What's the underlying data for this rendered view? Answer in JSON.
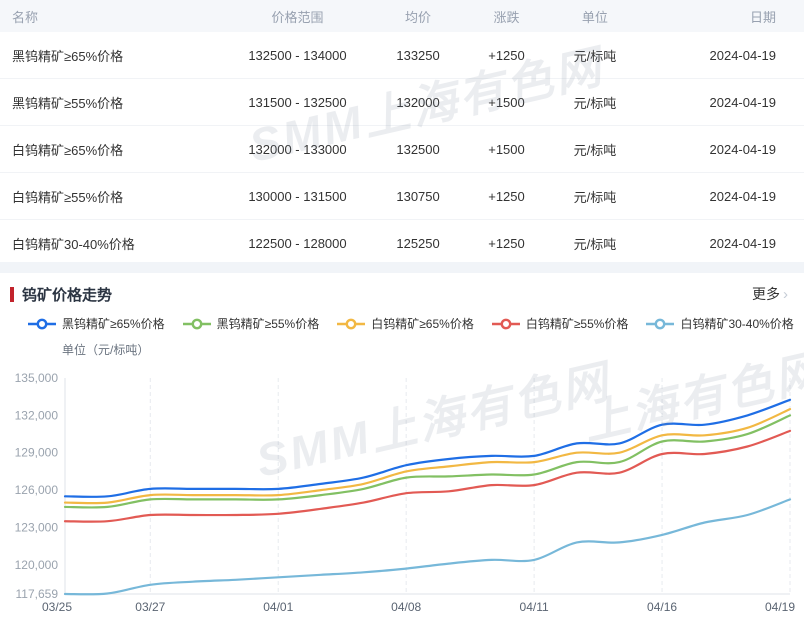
{
  "table": {
    "columns": [
      "名称",
      "价格范围",
      "均价",
      "涨跌",
      "单位",
      "日期"
    ],
    "rows": [
      {
        "name": "黑钨精矿≥65%价格",
        "range": "132500 - 134000",
        "avg": "133250",
        "change": "+1250",
        "unit": "元/标吨",
        "date": "2024-04-19"
      },
      {
        "name": "黑钨精矿≥55%价格",
        "range": "131500 - 132500",
        "avg": "132000",
        "change": "+1500",
        "unit": "元/标吨",
        "date": "2024-04-19"
      },
      {
        "name": "白钨精矿≥65%价格",
        "range": "132000 - 133000",
        "avg": "132500",
        "change": "+1500",
        "unit": "元/标吨",
        "date": "2024-04-19"
      },
      {
        "name": "白钨精矿≥55%价格",
        "range": "130000 - 131500",
        "avg": "130750",
        "change": "+1250",
        "unit": "元/标吨",
        "date": "2024-04-19"
      },
      {
        "name": "白钨精矿30-40%价格",
        "range": "122500 - 128000",
        "avg": "125250",
        "change": "+1250",
        "unit": "元/标吨",
        "date": "2024-04-19"
      }
    ]
  },
  "section": {
    "title": "钨矿价格走势",
    "more_label": "更多",
    "more_chevron": "›"
  },
  "watermark": "SMM上海有色网",
  "colors": {
    "accent_red": "#c2232c",
    "value_red": "#c8434e",
    "header_bg": "#f5f7fa"
  },
  "chart_data": {
    "type": "line",
    "title": "钨矿价格走势",
    "unit_label": "单位（元/标吨）",
    "x": [
      "03/25",
      "03/26",
      "03/27",
      "03/28",
      "03/29",
      "04/01",
      "04/02",
      "04/03",
      "04/08",
      "04/09",
      "04/10",
      "04/11",
      "04/12",
      "04/15",
      "04/16",
      "04/17",
      "04/18",
      "04/19"
    ],
    "x_ticks": [
      "03/25",
      "03/27",
      "04/01",
      "04/08",
      "04/11",
      "04/16",
      "04/19"
    ],
    "y_ticks": [
      117659,
      120000,
      123000,
      126000,
      129000,
      132000,
      135000
    ],
    "ylim": [
      117659,
      135000
    ],
    "grid": "vertical-dashed",
    "legend_position": "top",
    "series": [
      {
        "name": "黑钨精矿≥65%价格",
        "color": "#1f6ee5",
        "values": [
          125500,
          125500,
          126100,
          126100,
          126100,
          126100,
          126500,
          127000,
          128000,
          128500,
          128750,
          128750,
          129750,
          129750,
          131250,
          131250,
          132000,
          133250
        ]
      },
      {
        "name": "黑钨精矿≥55%价格",
        "color": "#82c063",
        "values": [
          124650,
          124650,
          125250,
          125250,
          125250,
          125250,
          125600,
          126100,
          127000,
          127100,
          127250,
          127250,
          128250,
          128250,
          129900,
          129900,
          130500,
          132000
        ]
      },
      {
        "name": "白钨精矿≥65%价格",
        "color": "#f2b843",
        "values": [
          125000,
          125000,
          125600,
          125600,
          125600,
          125600,
          126000,
          126500,
          127500,
          127900,
          128250,
          128250,
          129000,
          129000,
          130400,
          130400,
          131000,
          132500
        ]
      },
      {
        "name": "白钨精矿≥55%价格",
        "color": "#e25a54",
        "values": [
          123500,
          123500,
          124000,
          124000,
          124000,
          124100,
          124500,
          125000,
          125750,
          125900,
          126400,
          126400,
          127400,
          127400,
          128900,
          128900,
          129500,
          130750
        ]
      },
      {
        "name": "白钨精矿30-40%价格",
        "color": "#77b8d9",
        "values": [
          117659,
          117700,
          118400,
          118650,
          118800,
          119000,
          119200,
          119400,
          119700,
          120100,
          120400,
          120400,
          121800,
          121800,
          122400,
          123400,
          124000,
          125250
        ]
      }
    ]
  }
}
